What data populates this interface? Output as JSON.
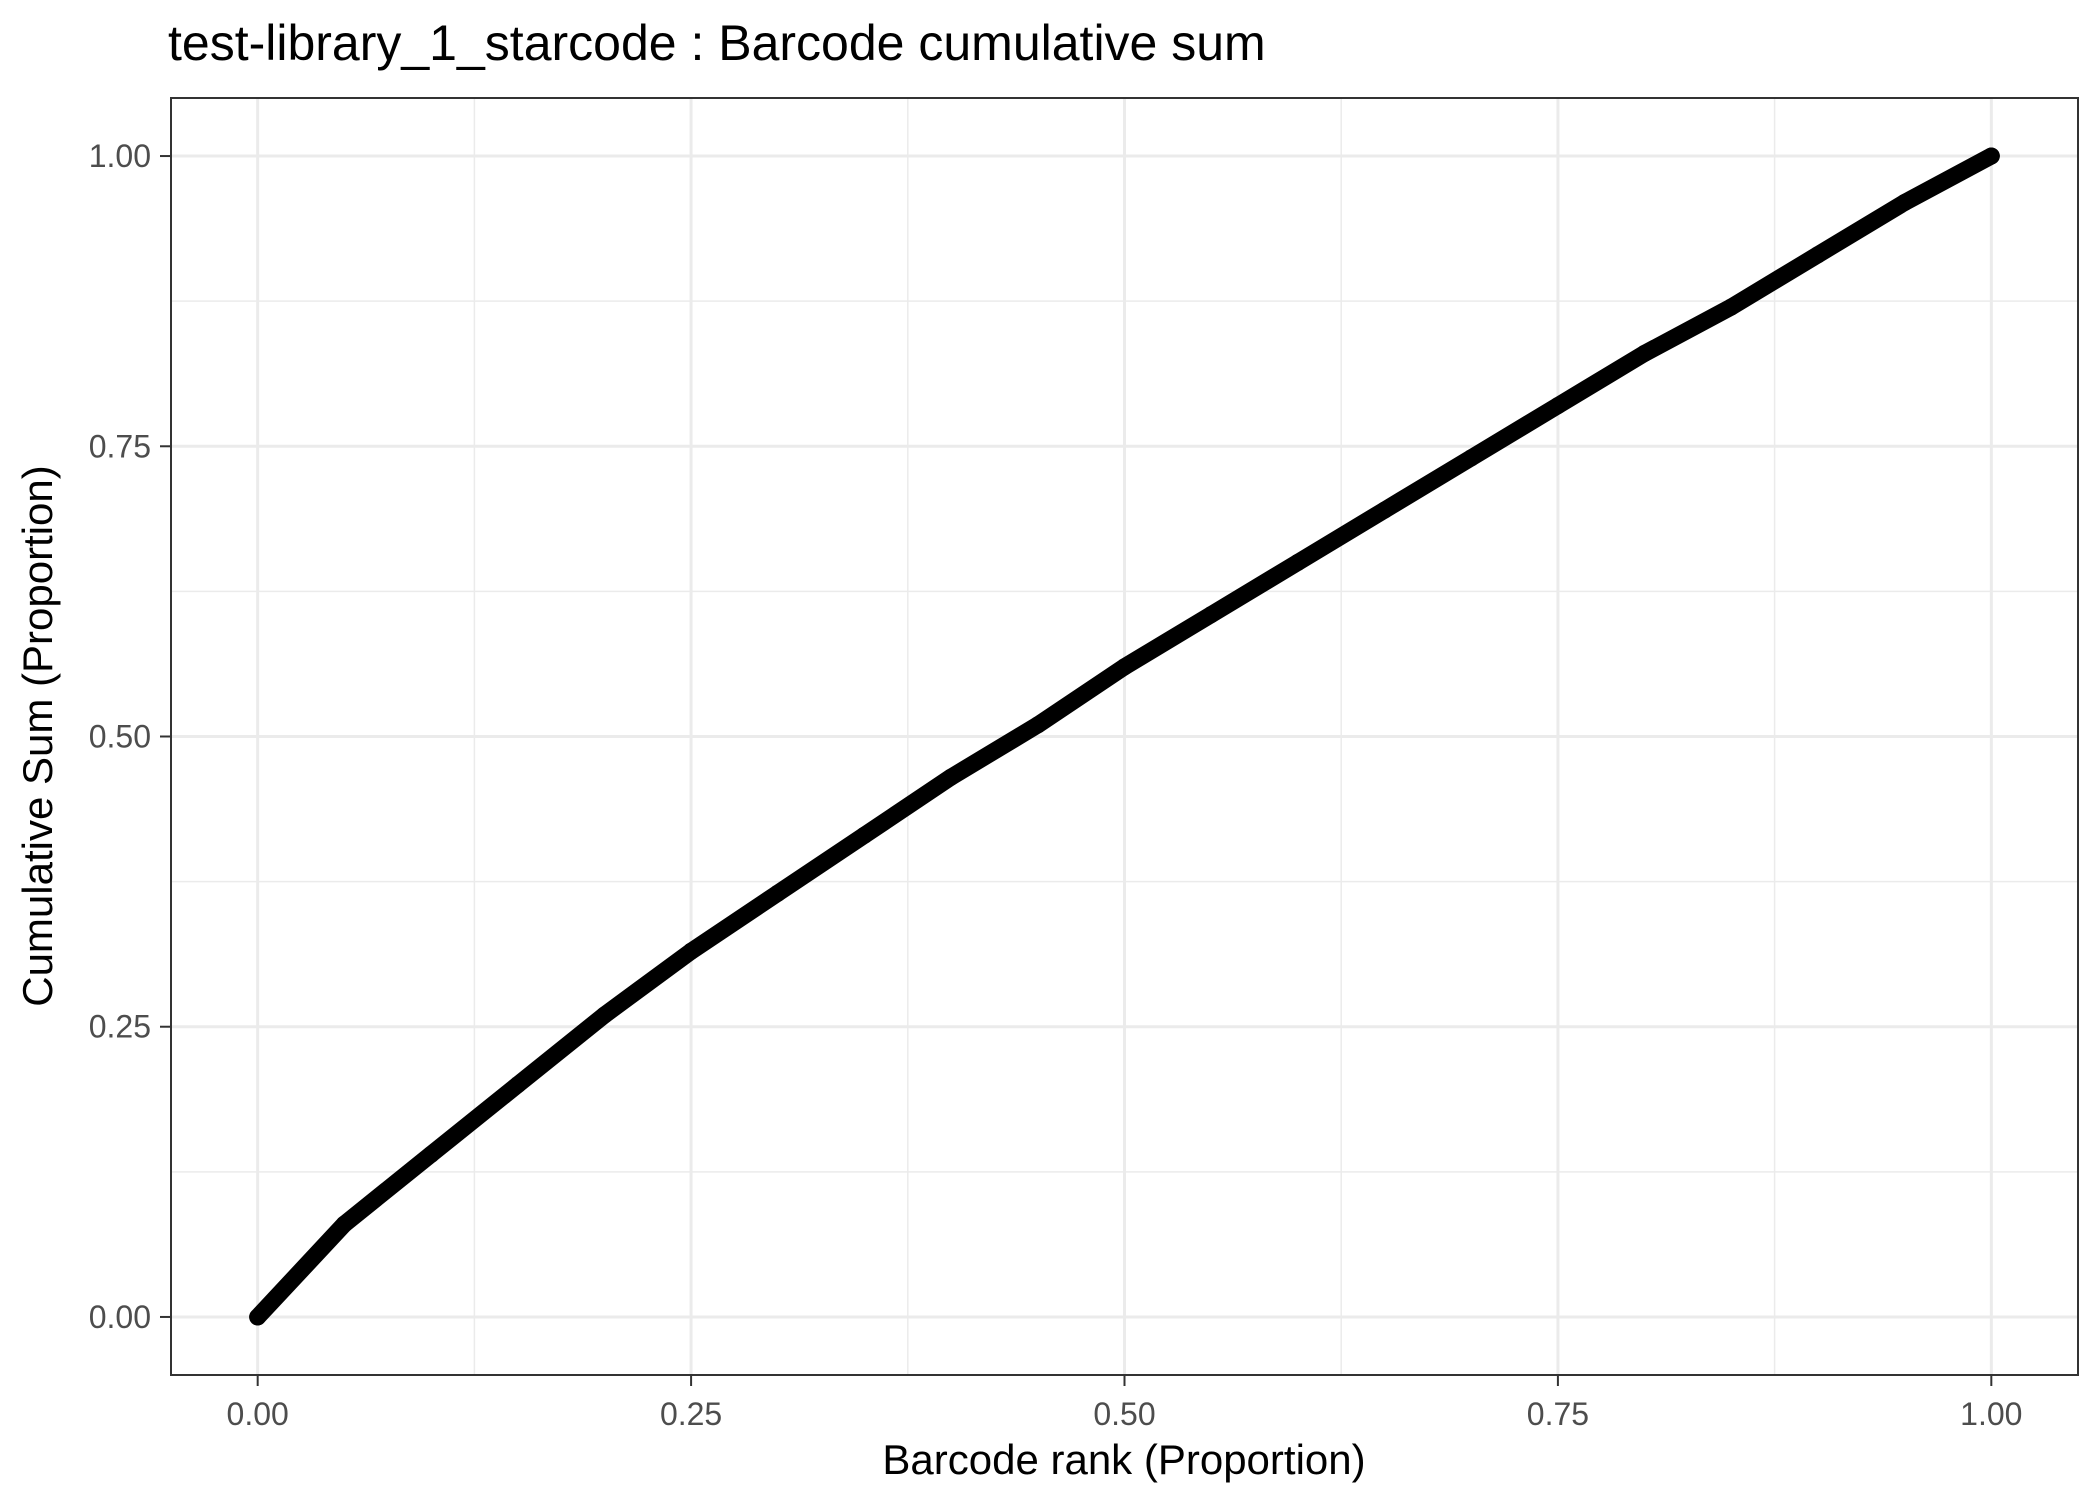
{
  "chart_data": {
    "type": "line",
    "title": "test-library_1_starcode : Barcode cumulative sum",
    "xlabel": "Barcode rank (Proportion)",
    "ylabel": "Cumulative Sum (Proportion)",
    "xlim": [
      -0.05,
      1.05
    ],
    "ylim": [
      -0.05,
      1.05
    ],
    "x_ticks": [
      0.0,
      0.25,
      0.5,
      0.75,
      1.0
    ],
    "x_tick_labels": [
      "0.00",
      "0.25",
      "0.50",
      "0.75",
      "1.00"
    ],
    "y_ticks": [
      0.0,
      0.25,
      0.5,
      0.75,
      1.0
    ],
    "y_tick_labels": [
      "0.00",
      "0.25",
      "0.50",
      "0.75",
      "1.00"
    ],
    "grid": true,
    "legend": "none",
    "series": [
      {
        "color": "#000000",
        "x": [
          0.0,
          0.05,
          0.1,
          0.15,
          0.2,
          0.25,
          0.3,
          0.35,
          0.4,
          0.45,
          0.5,
          0.55,
          0.6,
          0.65,
          0.7,
          0.75,
          0.8,
          0.85,
          0.9,
          0.95,
          1.0
        ],
        "y": [
          0.0,
          0.08,
          0.14,
          0.2,
          0.26,
          0.315,
          0.365,
          0.415,
          0.465,
          0.51,
          0.56,
          0.605,
          0.65,
          0.695,
          0.74,
          0.785,
          0.83,
          0.87,
          0.915,
          0.96,
          1.0
        ]
      }
    ]
  }
}
